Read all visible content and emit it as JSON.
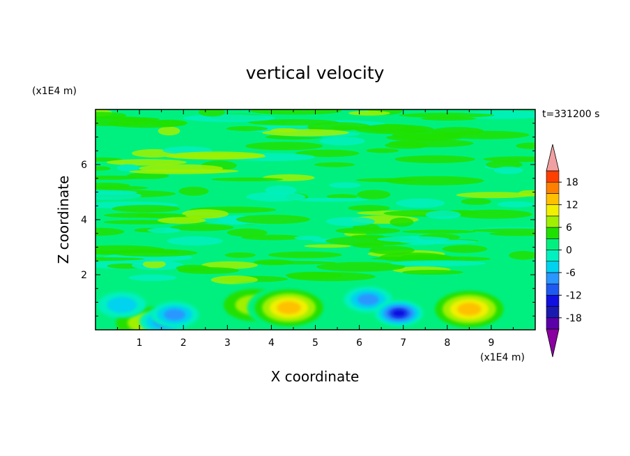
{
  "chart_data": {
    "type": "heatmap",
    "title": "vertical velocity",
    "xlabel": "X coordinate",
    "ylabel": "Z coordinate",
    "x_unit_label": "(x1E4 m)",
    "y_unit_label": "(x1E4 m)",
    "time_label": "t=331200 s",
    "xlim": [
      0,
      10
    ],
    "ylim": [
      0,
      8
    ],
    "x_ticks": [
      1,
      2,
      3,
      4,
      5,
      6,
      7,
      8,
      9
    ],
    "y_ticks": [
      2,
      4,
      6
    ],
    "colorbar": {
      "levels": [
        -21,
        -18,
        -15,
        -12,
        -9,
        -6,
        -3,
        0,
        3,
        6,
        9,
        12,
        15,
        18,
        21
      ],
      "tick_values": [
        -18,
        -12,
        -6,
        0,
        6,
        12,
        18
      ],
      "tick_labels": [
        "-18",
        "-12",
        "-6",
        "0",
        "6",
        "12",
        "18"
      ],
      "colors": [
        "#5a00a8",
        "#1a1ab0",
        "#1010e0",
        "#1e5af0",
        "#2a96ff",
        "#00d2f0",
        "#00f0c0",
        "#00f080",
        "#20e000",
        "#a0f000",
        "#f0f000",
        "#ffc000",
        "#ff8000",
        "#ff4000",
        "#ff0000"
      ],
      "under_color": "#8a00a0",
      "over_color": "#f0a0a0"
    },
    "background_color": "#00f080",
    "features": [
      {
        "kind": "updraft",
        "x": 1.15,
        "z": 0.25,
        "peak": 8
      },
      {
        "kind": "downdraft",
        "x": 1.55,
        "z": 0.3,
        "peak": -9
      },
      {
        "kind": "downdraft",
        "x": 1.8,
        "z": 0.55,
        "peak": -9
      },
      {
        "kind": "weak-down",
        "x": 0.6,
        "z": 0.9,
        "peak": -5
      },
      {
        "kind": "updraft",
        "x": 3.6,
        "z": 0.9,
        "peak": 7
      },
      {
        "kind": "updraft",
        "x": 4.4,
        "z": 0.8,
        "peak": 13
      },
      {
        "kind": "downdraft",
        "x": 6.2,
        "z": 1.1,
        "peak": -8
      },
      {
        "kind": "downdraft",
        "x": 6.9,
        "z": 0.6,
        "peak": -15
      },
      {
        "kind": "updraft",
        "x": 8.5,
        "z": 0.75,
        "peak": 15
      }
    ]
  }
}
